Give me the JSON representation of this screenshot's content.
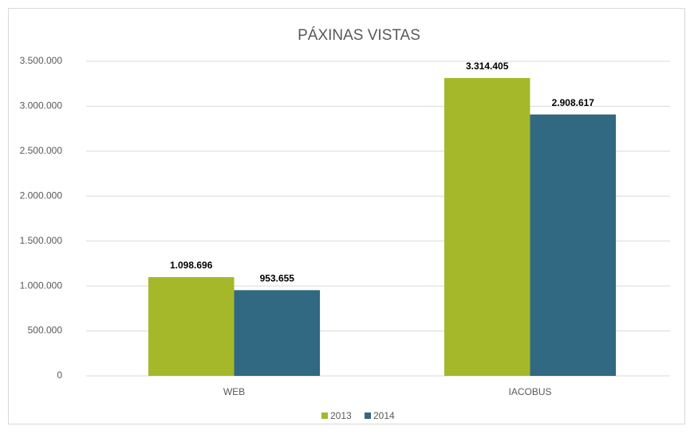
{
  "chart_data": {
    "type": "bar",
    "title": "PÁXINAS VISTAS",
    "categories": [
      "WEB",
      "IACOBUS"
    ],
    "series": [
      {
        "name": "2013",
        "color": "#a5b82a",
        "values": [
          1098696,
          3314405
        ],
        "value_labels": [
          "1.098.696",
          "3.314.405"
        ]
      },
      {
        "name": "2014",
        "color": "#316882",
        "values": [
          953655,
          2908617
        ],
        "value_labels": [
          "953.655",
          "2.908.617"
        ]
      }
    ],
    "ylim": [
      0,
      3500000
    ],
    "yticks": [
      0,
      {
        "value": 500000,
        "label": "500.000"
      },
      {
        "value": 1000000,
        "label": "1.000.000"
      },
      {
        "value": 1500000,
        "label": "1.500.000"
      },
      {
        "value": 2000000,
        "label": "2.000.000"
      },
      {
        "value": 2500000,
        "label": "2.500.000"
      },
      {
        "value": 3000000,
        "label": "3.000.000"
      },
      {
        "value": 3500000,
        "label": "3.500.000"
      }
    ],
    "grid": true,
    "legend": "bottom"
  }
}
